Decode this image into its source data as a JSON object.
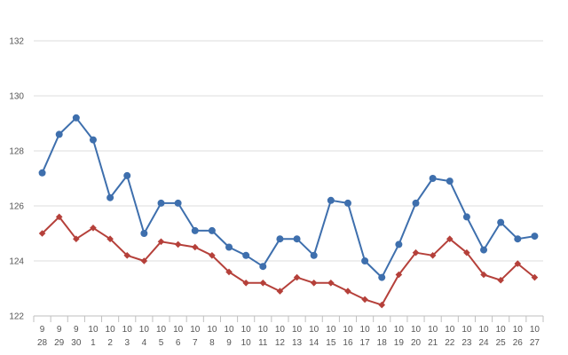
{
  "chart_data": {
    "type": "line",
    "title": "",
    "xlabel": "",
    "ylabel": "",
    "categories": [
      [
        "9",
        "28"
      ],
      [
        "9",
        "29"
      ],
      [
        "9",
        "30"
      ],
      [
        "10",
        "1"
      ],
      [
        "10",
        "2"
      ],
      [
        "10",
        "3"
      ],
      [
        "10",
        "4"
      ],
      [
        "10",
        "5"
      ],
      [
        "10",
        "6"
      ],
      [
        "10",
        "7"
      ],
      [
        "10",
        "8"
      ],
      [
        "10",
        "9"
      ],
      [
        "10",
        "10"
      ],
      [
        "10",
        "11"
      ],
      [
        "10",
        "12"
      ],
      [
        "10",
        "13"
      ],
      [
        "10",
        "14"
      ],
      [
        "10",
        "15"
      ],
      [
        "10",
        "16"
      ],
      [
        "10",
        "17"
      ],
      [
        "10",
        "18"
      ],
      [
        "10",
        "19"
      ],
      [
        "10",
        "20"
      ],
      [
        "10",
        "21"
      ],
      [
        "10",
        "22"
      ],
      [
        "10",
        "23"
      ],
      [
        "10",
        "24"
      ],
      [
        "10",
        "25"
      ],
      [
        "10",
        "26"
      ],
      [
        "10",
        "27"
      ]
    ],
    "ylim": [
      122,
      132
    ],
    "yticks": [
      "122",
      "124",
      "126",
      "128",
      "130",
      "132"
    ],
    "grid": true,
    "series": [
      {
        "color": "#3e6fad",
        "marker": "circle",
        "values": [
          127.2,
          128.6,
          129.2,
          128.4,
          126.3,
          127.1,
          125.0,
          126.1,
          126.1,
          125.1,
          125.1,
          124.5,
          124.2,
          123.8,
          124.8,
          124.8,
          124.2,
          126.2,
          126.1,
          124.0,
          123.4,
          124.6,
          126.1,
          127.0,
          126.9,
          125.6,
          124.4,
          125.4,
          124.8,
          124.9
        ]
      },
      {
        "color": "#b5403a",
        "marker": "diamond",
        "values": [
          125.0,
          125.6,
          124.8,
          125.2,
          124.8,
          124.2,
          124.0,
          124.7,
          124.6,
          124.5,
          124.2,
          123.6,
          123.2,
          123.2,
          122.9,
          123.4,
          123.2,
          123.2,
          122.9,
          122.6,
          122.4,
          123.5,
          124.3,
          124.2,
          124.8,
          124.3,
          123.5,
          123.3,
          123.9,
          123.4
        ]
      }
    ]
  }
}
